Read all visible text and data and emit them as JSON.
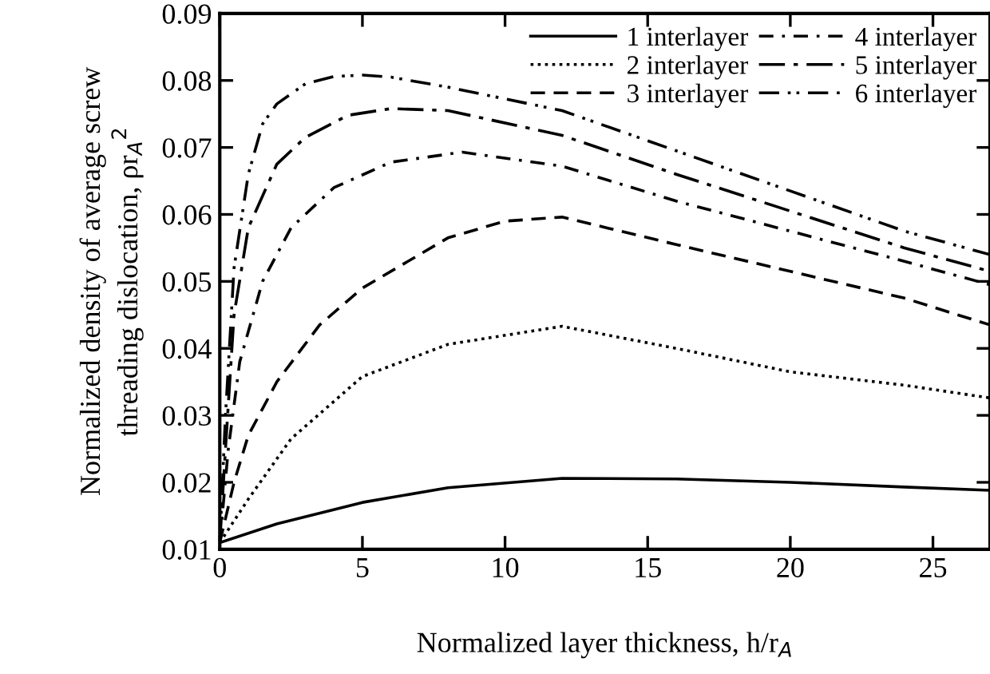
{
  "chart_data": {
    "type": "line",
    "xlabel": "Normalized layer thickness, h/r$_{A}$",
    "ylabel": "Normalized density of average screw\nthreading dislocation, ρr$_{A}$$^{2}$",
    "xlim": [
      0,
      27
    ],
    "xticks": [
      0,
      5,
      10,
      15,
      20,
      25
    ],
    "ylim": [
      0.01,
      0.09
    ],
    "yticks": [
      0.01,
      0.02,
      0.03,
      0.04,
      0.05,
      0.06,
      0.07,
      0.08,
      0.09
    ],
    "grid": false,
    "legend": "top right",
    "marker": "none",
    "series": [
      {
        "name": "1 interlayer",
        "color": "#000000",
        "line_style": "solid",
        "x": [
          0,
          2,
          5,
          8,
          12,
          16,
          20,
          24,
          27
        ],
        "values": [
          0.011,
          0.0138,
          0.017,
          0.0192,
          0.0206,
          0.0205,
          0.02,
          0.0193,
          0.0188
        ]
      },
      {
        "name": "2 interlayer",
        "color": "#000000",
        "line_style": "dotted",
        "x": [
          0,
          1,
          2.5,
          5,
          8,
          12,
          16,
          20,
          24,
          27
        ],
        "values": [
          0.011,
          0.0175,
          0.0265,
          0.0358,
          0.0406,
          0.0433,
          0.04,
          0.0365,
          0.0345,
          0.0326
        ]
      },
      {
        "name": "3 interlayer",
        "color": "#000000",
        "line_style": "dashed",
        "x": [
          0,
          0.5,
          1,
          2,
          3.5,
          5,
          8,
          10,
          12,
          16,
          20,
          24,
          27
        ],
        "values": [
          0.011,
          0.02,
          0.027,
          0.035,
          0.0435,
          0.049,
          0.0565,
          0.059,
          0.0596,
          0.0555,
          0.0515,
          0.0475,
          0.0435
        ]
      },
      {
        "name": "4 interlayer",
        "color": "#000000",
        "line_style": "dashdot",
        "x": [
          0,
          0.3,
          0.7,
          1.5,
          2.5,
          4,
          6,
          8.5,
          12,
          16,
          20,
          24,
          27
        ],
        "values": [
          0.011,
          0.025,
          0.038,
          0.05,
          0.058,
          0.064,
          0.0678,
          0.0693,
          0.0672,
          0.062,
          0.0575,
          0.053,
          0.0495
        ]
      },
      {
        "name": "5 interlayer",
        "color": "#000000",
        "line_style": "longdashdot",
        "x": [
          0,
          0.2,
          0.5,
          1,
          2,
          3,
          4.5,
          6,
          8,
          12,
          16,
          20,
          24,
          27
        ],
        "values": [
          0.011,
          0.025,
          0.045,
          0.058,
          0.0675,
          0.0715,
          0.0748,
          0.0758,
          0.0755,
          0.0718,
          0.066,
          0.0605,
          0.055,
          0.0515
        ]
      },
      {
        "name": "6 interlayer",
        "color": "#000000",
        "line_style": "dashdotdot",
        "x": [
          0,
          0.2,
          0.5,
          1,
          1.5,
          2,
          3,
          4,
          5,
          6,
          8,
          12,
          16,
          20,
          24,
          27
        ],
        "values": [
          0.011,
          0.03,
          0.052,
          0.066,
          0.0735,
          0.0765,
          0.0795,
          0.0806,
          0.0808,
          0.0805,
          0.079,
          0.0755,
          0.0695,
          0.0635,
          0.0575,
          0.054
        ]
      }
    ]
  }
}
